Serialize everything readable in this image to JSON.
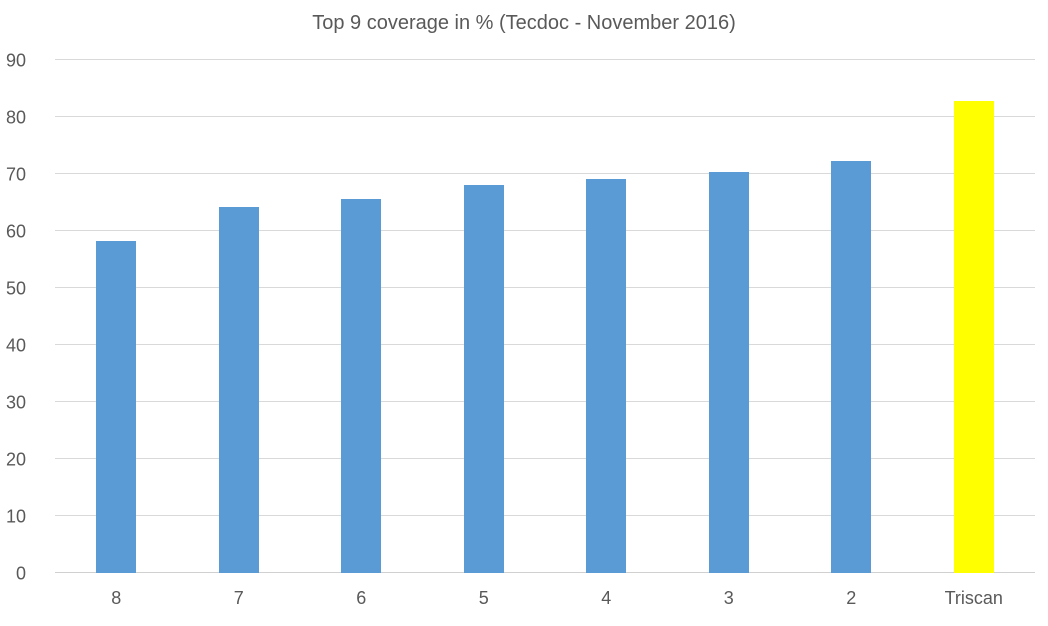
{
  "chart_data": {
    "type": "bar",
    "title": "Top 9 coverage in % (Tecdoc - November 2016)",
    "categories": [
      "8",
      "7",
      "6",
      "5",
      "4",
      "3",
      "2",
      "Triscan"
    ],
    "values": [
      58.2,
      64.3,
      65.7,
      68,
      69.2,
      70.3,
      72.2,
      82.8
    ],
    "xlabel": "",
    "ylabel": "",
    "ylim": [
      0,
      90
    ],
    "y_tick_step": 10,
    "y_tick_labels": [
      "0",
      "10",
      "20",
      "30",
      "40",
      "50",
      "60",
      "70",
      "80",
      "90"
    ],
    "grid": true,
    "legend": false,
    "bar_color": "#5b9bd5",
    "highlight_color": "#ffff00",
    "highlight_index": 7,
    "gridline_color": "#d9d9d9",
    "text_color": "#595959"
  }
}
